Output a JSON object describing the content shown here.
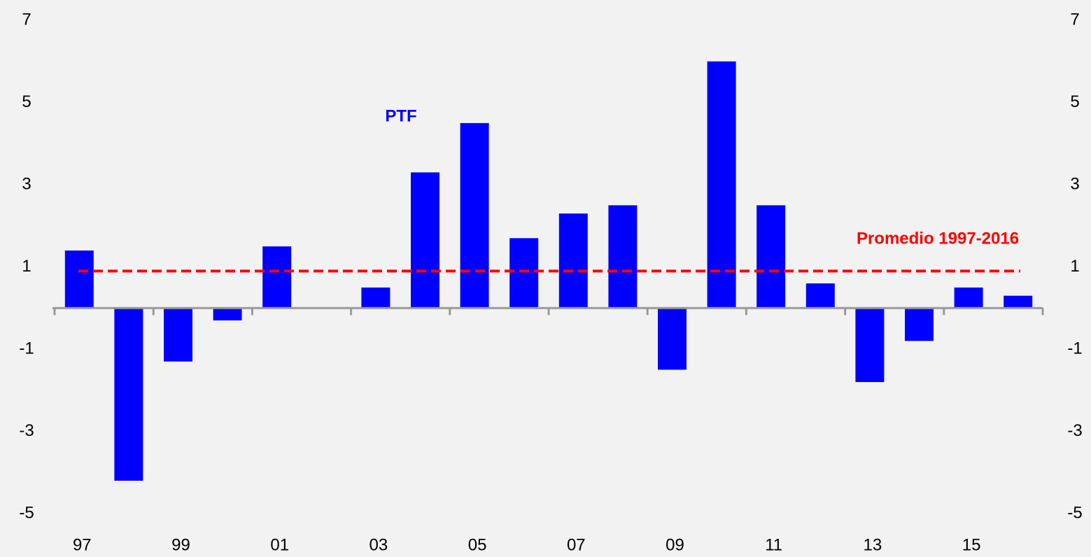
{
  "chart_data": {
    "type": "bar",
    "categories": [
      "97",
      null,
      "99",
      null,
      "01",
      null,
      "03",
      null,
      "05",
      null,
      "07",
      null,
      "09",
      null,
      "11",
      null,
      "13",
      null,
      "15",
      null
    ],
    "series": [
      {
        "name": "PTF",
        "color": "#0000ff",
        "values": [
          1.4,
          -4.2,
          -1.3,
          -0.3,
          1.5,
          0,
          0.5,
          3.3,
          4.5,
          1.7,
          2.3,
          2.5,
          -1.5,
          6.0,
          2.5,
          0.6,
          -1.8,
          -0.8,
          0.5,
          0.3
        ]
      }
    ],
    "reference_line": {
      "label": "Promedio 1997-2016",
      "value": 0.9,
      "color": "#ff0000"
    },
    "ylim": [
      -5,
      7
    ],
    "yticks": [
      -5,
      -3,
      -1,
      1,
      3,
      5,
      7
    ],
    "y2lim": [
      -5,
      7
    ],
    "y2ticks": [
      -5,
      -3,
      -1,
      1,
      3,
      5,
      7
    ],
    "grid": false
  }
}
